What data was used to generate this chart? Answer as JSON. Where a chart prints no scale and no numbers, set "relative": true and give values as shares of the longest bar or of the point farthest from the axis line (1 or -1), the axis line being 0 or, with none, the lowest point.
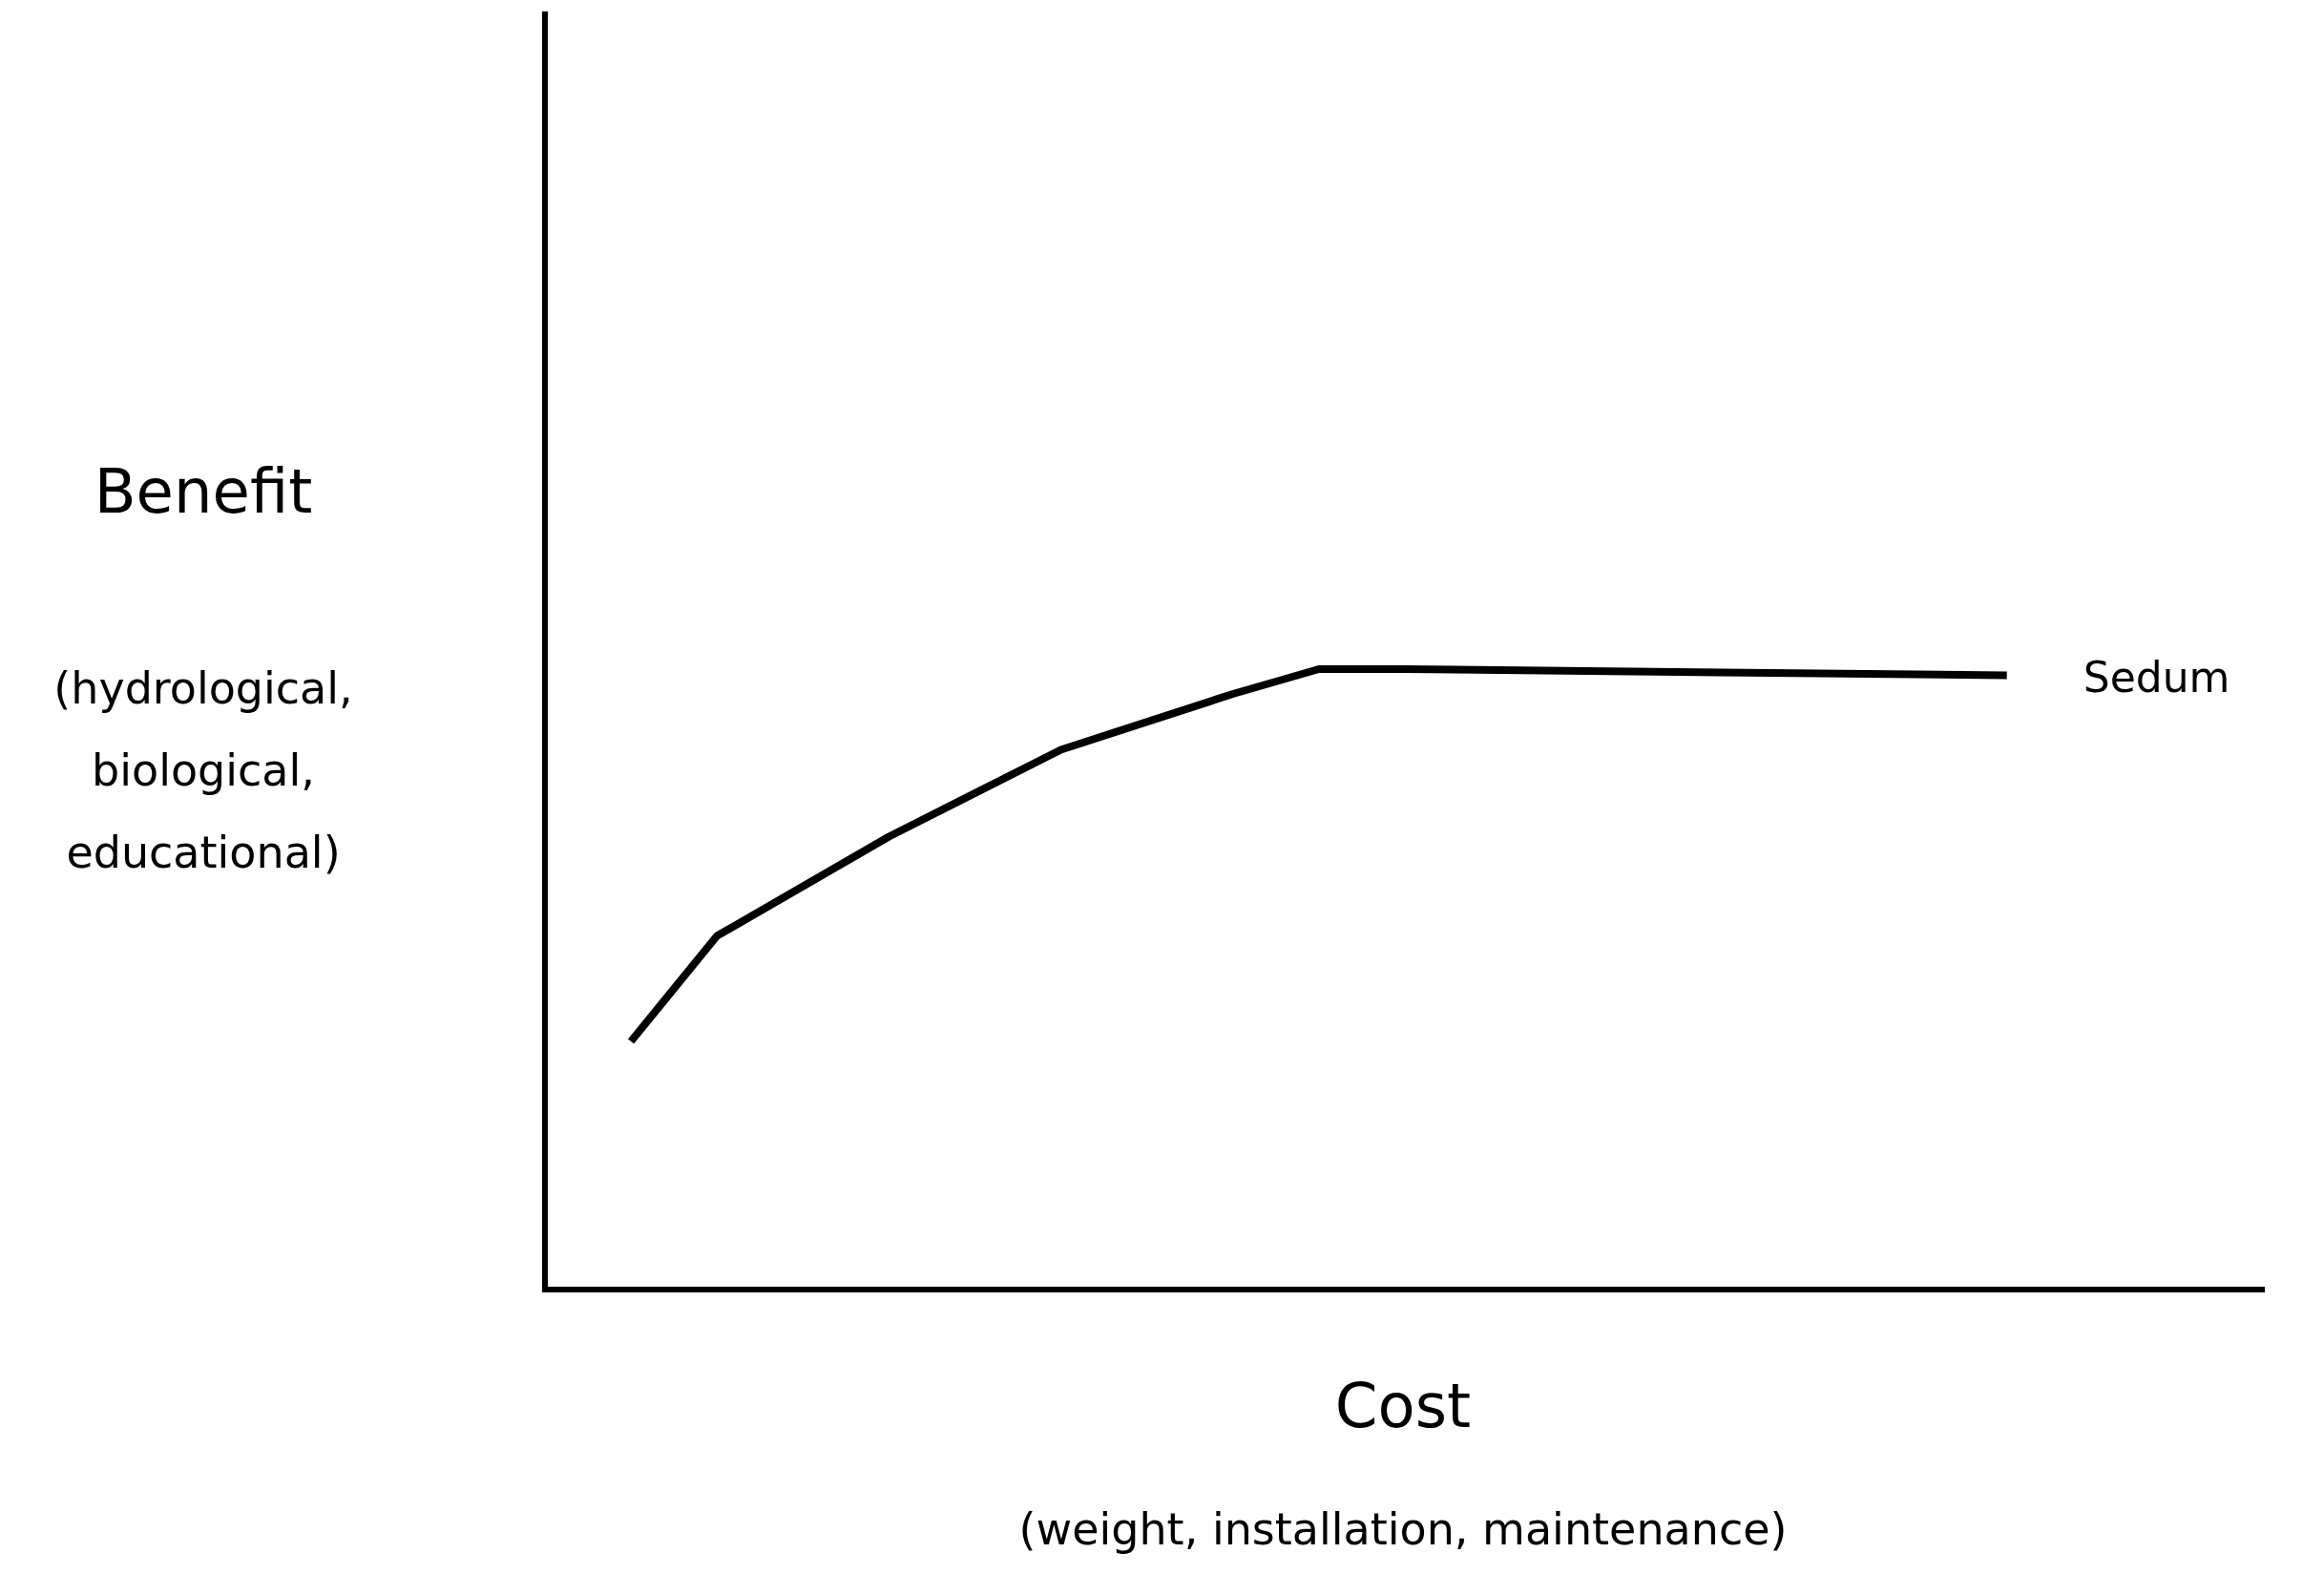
{
  "chart_data": {
    "type": "line",
    "relative": true,
    "xlabel": "Cost",
    "ylabel": "Benefit",
    "annotations": [
      "(hydrological, biological, educational)",
      "(weight, installation, maintenance)"
    ],
    "categories": [
      null,
      null,
      null,
      null,
      null,
      null,
      null,
      null,
      null,
      null,
      null,
      null,
      null,
      null,
      null,
      null,
      null,
      null,
      null,
      null,
      null
    ],
    "series": [
      {
        "name": "Sedum",
        "color": "#000000",
        "values": [
          null,
          0.4,
          0.57,
          null,
          0.73,
          null,
          0.87,
          null,
          0.96,
          1,
          1,
          null,
          null,
          null,
          null,
          null,
          null,
          0.99,
          null,
          null,
          null
        ]
      }
    ],
    "legend": false
  }
}
